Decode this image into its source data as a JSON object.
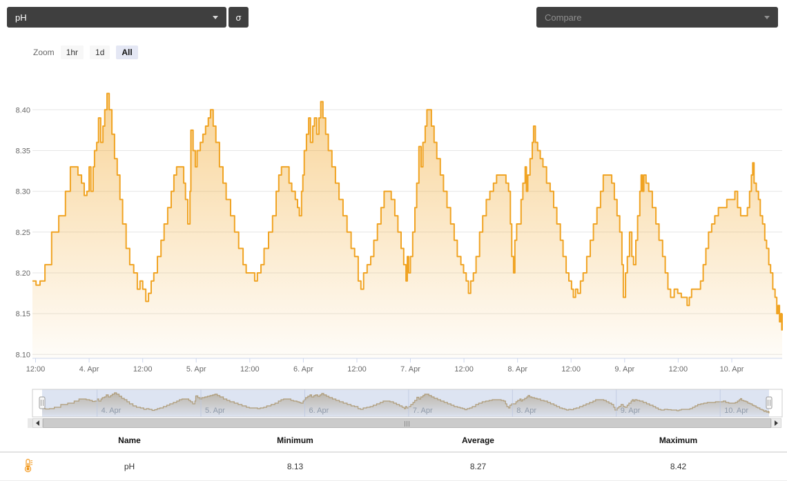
{
  "header": {
    "metric_label": "pH",
    "sigma_label": "σ",
    "compare_placeholder": "Compare"
  },
  "zoom_bar": {
    "label": "Zoom",
    "options": [
      "1hr",
      "1d",
      "All"
    ],
    "selected": "All"
  },
  "chart_data": {
    "type": "area",
    "step": true,
    "title": "",
    "xlabel": "",
    "ylabel": "",
    "ylim": [
      8.1,
      8.43
    ],
    "grid": "horizontal",
    "line_color": "#f0a322",
    "y_ticks": [
      "8.10",
      "8.15",
      "8.20",
      "8.25",
      "8.30",
      "8.35",
      "8.40"
    ],
    "x_ticks": [
      {
        "t": 12,
        "label": "12:00"
      },
      {
        "t": 24,
        "label": "4. Apr"
      },
      {
        "t": 36,
        "label": "12:00"
      },
      {
        "t": 48,
        "label": "5. Apr"
      },
      {
        "t": 60,
        "label": "12:00"
      },
      {
        "t": 72,
        "label": "6. Apr"
      },
      {
        "t": 84,
        "label": "12:00"
      },
      {
        "t": 96,
        "label": "7. Apr"
      },
      {
        "t": 108,
        "label": "12:00"
      },
      {
        "t": 120,
        "label": "8. Apr"
      },
      {
        "t": 132,
        "label": "12:00"
      },
      {
        "t": 144,
        "label": "9. Apr"
      },
      {
        "t": 156,
        "label": "12:00"
      },
      {
        "t": 168,
        "label": "10. Apr"
      }
    ],
    "series": [
      {
        "name": "pH",
        "points": [
          [
            11.3,
            8.19
          ],
          [
            12.1,
            8.185
          ],
          [
            13.0,
            8.19
          ],
          [
            14.1,
            8.21
          ],
          [
            15.6,
            8.25
          ],
          [
            17.2,
            8.27
          ],
          [
            18.7,
            8.3
          ],
          [
            19.8,
            8.33
          ],
          [
            20.7,
            8.33
          ],
          [
            21.5,
            8.32
          ],
          [
            22.3,
            8.31
          ],
          [
            22.9,
            8.295
          ],
          [
            23.5,
            8.3
          ],
          [
            24.0,
            8.33
          ],
          [
            24.4,
            8.3
          ],
          [
            24.9,
            8.33
          ],
          [
            25.2,
            8.35
          ],
          [
            25.7,
            8.36
          ],
          [
            26.1,
            8.39
          ],
          [
            26.6,
            8.36
          ],
          [
            27.1,
            8.38
          ],
          [
            27.5,
            8.4
          ],
          [
            28.0,
            8.42
          ],
          [
            28.5,
            8.4
          ],
          [
            29.1,
            8.37
          ],
          [
            29.7,
            8.34
          ],
          [
            30.3,
            8.32
          ],
          [
            30.9,
            8.29
          ],
          [
            31.5,
            8.26
          ],
          [
            32.3,
            8.23
          ],
          [
            33.1,
            8.21
          ],
          [
            34.0,
            8.2
          ],
          [
            34.8,
            8.18
          ],
          [
            35.4,
            8.19
          ],
          [
            36.0,
            8.18
          ],
          [
            36.7,
            8.165
          ],
          [
            37.3,
            8.175
          ],
          [
            37.9,
            8.19
          ],
          [
            38.5,
            8.2
          ],
          [
            39.3,
            8.22
          ],
          [
            40.1,
            8.24
          ],
          [
            40.8,
            8.26
          ],
          [
            41.6,
            8.28
          ],
          [
            42.4,
            8.3
          ],
          [
            43.0,
            8.32
          ],
          [
            43.6,
            8.33
          ],
          [
            44.5,
            8.33
          ],
          [
            45.2,
            8.31
          ],
          [
            45.6,
            8.29
          ],
          [
            46.1,
            8.26
          ],
          [
            46.6,
            8.3
          ],
          [
            46.8,
            8.375
          ],
          [
            47.3,
            8.35
          ],
          [
            47.8,
            8.33
          ],
          [
            48.2,
            8.35
          ],
          [
            48.9,
            8.36
          ],
          [
            49.5,
            8.37
          ],
          [
            50.1,
            8.38
          ],
          [
            50.7,
            8.39
          ],
          [
            51.2,
            8.4
          ],
          [
            51.8,
            8.38
          ],
          [
            52.4,
            8.36
          ],
          [
            53.2,
            8.33
          ],
          [
            54.0,
            8.31
          ],
          [
            54.7,
            8.29
          ],
          [
            55.7,
            8.27
          ],
          [
            56.6,
            8.25
          ],
          [
            57.5,
            8.23
          ],
          [
            58.5,
            8.21
          ],
          [
            59.2,
            8.2
          ],
          [
            60.2,
            8.2
          ],
          [
            61.1,
            8.19
          ],
          [
            61.7,
            8.2
          ],
          [
            62.5,
            8.21
          ],
          [
            63.2,
            8.23
          ],
          [
            64.2,
            8.25
          ],
          [
            65.1,
            8.27
          ],
          [
            65.9,
            8.3
          ],
          [
            66.5,
            8.32
          ],
          [
            67.1,
            8.33
          ],
          [
            68.2,
            8.33
          ],
          [
            68.8,
            8.31
          ],
          [
            69.4,
            8.3
          ],
          [
            70.2,
            8.29
          ],
          [
            70.7,
            8.28
          ],
          [
            71.1,
            8.27
          ],
          [
            71.6,
            8.3
          ],
          [
            71.9,
            8.32
          ],
          [
            72.2,
            8.35
          ],
          [
            72.7,
            8.37
          ],
          [
            73.2,
            8.39
          ],
          [
            73.6,
            8.36
          ],
          [
            74.1,
            8.38
          ],
          [
            74.5,
            8.39
          ],
          [
            75.0,
            8.37
          ],
          [
            75.5,
            8.39
          ],
          [
            75.9,
            8.41
          ],
          [
            76.4,
            8.39
          ],
          [
            77.0,
            8.37
          ],
          [
            77.6,
            8.35
          ],
          [
            78.4,
            8.33
          ],
          [
            79.2,
            8.31
          ],
          [
            80.0,
            8.29
          ],
          [
            80.9,
            8.27
          ],
          [
            81.8,
            8.25
          ],
          [
            82.7,
            8.23
          ],
          [
            83.5,
            8.22
          ],
          [
            84.3,
            8.19
          ],
          [
            84.9,
            8.18
          ],
          [
            85.5,
            8.2
          ],
          [
            86.3,
            8.21
          ],
          [
            87.1,
            8.22
          ],
          [
            87.8,
            8.24
          ],
          [
            88.6,
            8.26
          ],
          [
            89.4,
            8.28
          ],
          [
            90.1,
            8.3
          ],
          [
            90.9,
            8.3
          ],
          [
            91.7,
            8.29
          ],
          [
            92.5,
            8.27
          ],
          [
            93.2,
            8.25
          ],
          [
            93.9,
            8.23
          ],
          [
            94.5,
            8.21
          ],
          [
            95.0,
            8.19
          ],
          [
            95.3,
            8.22
          ],
          [
            95.6,
            8.2
          ],
          [
            96.0,
            8.22
          ],
          [
            96.5,
            8.25
          ],
          [
            97.0,
            8.28
          ],
          [
            97.4,
            8.31
          ],
          [
            97.9,
            8.355
          ],
          [
            98.4,
            8.33
          ],
          [
            98.8,
            8.36
          ],
          [
            99.3,
            8.38
          ],
          [
            99.7,
            8.4
          ],
          [
            100.2,
            8.4
          ],
          [
            100.7,
            8.38
          ],
          [
            101.3,
            8.36
          ],
          [
            101.9,
            8.34
          ],
          [
            102.7,
            8.32
          ],
          [
            103.4,
            8.3
          ],
          [
            104.2,
            8.28
          ],
          [
            105.0,
            8.26
          ],
          [
            105.8,
            8.24
          ],
          [
            106.5,
            8.22
          ],
          [
            107.3,
            8.21
          ],
          [
            107.9,
            8.2
          ],
          [
            108.5,
            8.19
          ],
          [
            109.0,
            8.175
          ],
          [
            109.5,
            8.19
          ],
          [
            110.1,
            8.2
          ],
          [
            110.7,
            8.22
          ],
          [
            111.5,
            8.25
          ],
          [
            112.2,
            8.27
          ],
          [
            113.0,
            8.29
          ],
          [
            113.8,
            8.3
          ],
          [
            114.6,
            8.31
          ],
          [
            115.3,
            8.32
          ],
          [
            116.6,
            8.32
          ],
          [
            117.4,
            8.31
          ],
          [
            118.0,
            8.3
          ],
          [
            118.4,
            8.26
          ],
          [
            118.7,
            8.22
          ],
          [
            119.1,
            8.2
          ],
          [
            119.4,
            8.24
          ],
          [
            119.8,
            8.26
          ],
          [
            120.3,
            8.26
          ],
          [
            120.8,
            8.29
          ],
          [
            121.2,
            8.31
          ],
          [
            121.7,
            8.33
          ],
          [
            122.0,
            8.3
          ],
          [
            122.3,
            8.32
          ],
          [
            122.8,
            8.34
          ],
          [
            123.3,
            8.36
          ],
          [
            123.6,
            8.38
          ],
          [
            124.0,
            8.36
          ],
          [
            124.5,
            8.35
          ],
          [
            125.1,
            8.34
          ],
          [
            125.7,
            8.33
          ],
          [
            126.5,
            8.31
          ],
          [
            127.3,
            8.3
          ],
          [
            128.1,
            8.28
          ],
          [
            128.8,
            8.26
          ],
          [
            129.6,
            8.24
          ],
          [
            130.2,
            8.22
          ],
          [
            130.9,
            8.2
          ],
          [
            131.5,
            8.19
          ],
          [
            132.1,
            8.18
          ],
          [
            132.5,
            8.17
          ],
          [
            133.0,
            8.18
          ],
          [
            133.5,
            8.175
          ],
          [
            134.1,
            8.19
          ],
          [
            134.7,
            8.2
          ],
          [
            135.5,
            8.22
          ],
          [
            136.3,
            8.24
          ],
          [
            137.0,
            8.26
          ],
          [
            137.8,
            8.28
          ],
          [
            138.6,
            8.3
          ],
          [
            139.2,
            8.32
          ],
          [
            140.4,
            8.32
          ],
          [
            141.1,
            8.31
          ],
          [
            141.7,
            8.29
          ],
          [
            142.3,
            8.27
          ],
          [
            142.9,
            8.25
          ],
          [
            143.4,
            8.21
          ],
          [
            143.7,
            8.17
          ],
          [
            144.2,
            8.2
          ],
          [
            144.6,
            8.22
          ],
          [
            145.1,
            8.25
          ],
          [
            145.6,
            8.22
          ],
          [
            146.0,
            8.21
          ],
          [
            146.5,
            8.24
          ],
          [
            146.9,
            8.27
          ],
          [
            147.4,
            8.3
          ],
          [
            147.7,
            8.32
          ],
          [
            148.0,
            8.3
          ],
          [
            148.3,
            8.32
          ],
          [
            148.8,
            8.31
          ],
          [
            149.4,
            8.3
          ],
          [
            150.2,
            8.28
          ],
          [
            151.0,
            8.26
          ],
          [
            151.7,
            8.24
          ],
          [
            152.5,
            8.22
          ],
          [
            153.1,
            8.2
          ],
          [
            153.7,
            8.18
          ],
          [
            154.3,
            8.17
          ],
          [
            155.1,
            8.18
          ],
          [
            155.9,
            8.175
          ],
          [
            156.7,
            8.17
          ],
          [
            157.4,
            8.17
          ],
          [
            158.0,
            8.16
          ],
          [
            158.5,
            8.17
          ],
          [
            159.0,
            8.18
          ],
          [
            160.2,
            8.18
          ],
          [
            161.0,
            8.19
          ],
          [
            161.6,
            8.21
          ],
          [
            162.2,
            8.23
          ],
          [
            162.8,
            8.25
          ],
          [
            163.5,
            8.26
          ],
          [
            164.2,
            8.27
          ],
          [
            165.0,
            8.28
          ],
          [
            165.9,
            8.28
          ],
          [
            166.9,
            8.29
          ],
          [
            167.9,
            8.29
          ],
          [
            168.7,
            8.3
          ],
          [
            169.3,
            8.28
          ],
          [
            170.0,
            8.27
          ],
          [
            170.7,
            8.27
          ],
          [
            171.5,
            8.28
          ],
          [
            172.0,
            8.3
          ],
          [
            172.4,
            8.32
          ],
          [
            172.7,
            8.335
          ],
          [
            173.0,
            8.31
          ],
          [
            173.5,
            8.3
          ],
          [
            174.0,
            8.29
          ],
          [
            174.4,
            8.27
          ],
          [
            174.9,
            8.26
          ],
          [
            175.4,
            8.24
          ],
          [
            175.8,
            8.23
          ],
          [
            176.3,
            8.21
          ],
          [
            176.7,
            8.2
          ],
          [
            177.2,
            8.18
          ],
          [
            177.7,
            8.17
          ],
          [
            178.1,
            8.15
          ],
          [
            178.4,
            8.16
          ],
          [
            178.7,
            8.14
          ],
          [
            179.0,
            8.15
          ],
          [
            179.2,
            8.13
          ],
          [
            179.3,
            8.15
          ]
        ]
      }
    ],
    "navigator": {
      "day_labels": [
        {
          "t": 24,
          "label": "4. Apr"
        },
        {
          "t": 48,
          "label": "5. Apr"
        },
        {
          "t": 72,
          "label": "6. Apr"
        },
        {
          "t": 96,
          "label": "7. Apr"
        },
        {
          "t": 120,
          "label": "8. Apr"
        },
        {
          "t": 144,
          "label": "9. Apr"
        },
        {
          "t": 168,
          "label": "10. Apr"
        }
      ]
    }
  },
  "table": {
    "headers": [
      "Name",
      "Minimum",
      "Average",
      "Maximum"
    ],
    "rows": [
      {
        "icon": "thermometer-icon",
        "name": "pH",
        "minimum": "8.13",
        "average": "8.27",
        "maximum": "8.42"
      }
    ]
  },
  "colors": {
    "accent_orange": "#f0a322",
    "nav_line_tan": "#c3a262",
    "navigator_mask": "rgba(102,133,194,0.22)",
    "dark_button": "#3f3f3f",
    "selected_zoom_bg": "#e4e7f4"
  }
}
